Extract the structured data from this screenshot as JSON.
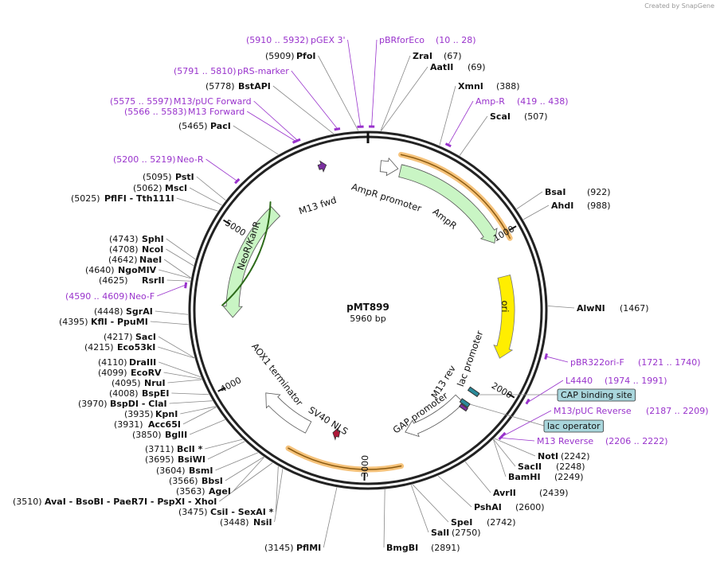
{
  "header": {
    "credit": "Created by SnapGene"
  },
  "map": {
    "name": "pMT899",
    "size": "5960 bp",
    "ticks": [
      1000,
      2000,
      3000,
      4000,
      5000
    ]
  },
  "enzymes": [
    {
      "name": "ZraI",
      "position": "(67)"
    },
    {
      "name": "AatII",
      "position": "(69)"
    },
    {
      "name": "XmnI",
      "position": "(388)"
    },
    {
      "name": "ScaI",
      "position": "(507)"
    },
    {
      "name": "BsaI",
      "position": "(922)"
    },
    {
      "name": "AhdI",
      "position": "(988)"
    },
    {
      "name": "AlwNI",
      "position": "(1467)"
    },
    {
      "name": "NotI",
      "position": "(2242)"
    },
    {
      "name": "SacII",
      "position": "(2248)"
    },
    {
      "name": "BamHI",
      "position": "(2249)"
    },
    {
      "name": "AvrII",
      "position": "(2439)"
    },
    {
      "name": "PshAI",
      "position": "(2600)"
    },
    {
      "name": "SpeI",
      "position": "(2742)"
    },
    {
      "name": "SalI",
      "position": "(2750)"
    },
    {
      "name": "BmgBI",
      "position": "(2891)"
    },
    {
      "name": "PfoI",
      "position": "(5909)"
    },
    {
      "name": "BstAPI",
      "position": "(5778)"
    },
    {
      "name": "PacI",
      "position": "(5465)"
    },
    {
      "name": "PstI",
      "position": "(5095)"
    },
    {
      "name": "MscI",
      "position": "(5062)"
    },
    {
      "name": "PflFI - Tth111I",
      "position": "(5025)"
    },
    {
      "name": "SphI",
      "position": "(4743)"
    },
    {
      "name": "NcoI",
      "position": "(4708)"
    },
    {
      "name": "NaeI",
      "position": "(4642)"
    },
    {
      "name": "NgoMIV",
      "position": "(4640)"
    },
    {
      "name": "RsrII",
      "position": "(4625)"
    },
    {
      "name": "SgrAI",
      "position": "(4448)"
    },
    {
      "name": "KflI - PpuMI",
      "position": "(4395)"
    },
    {
      "name": "SacI",
      "position": "(4217)"
    },
    {
      "name": "Eco53kI",
      "position": "(4215)"
    },
    {
      "name": "DraIII",
      "position": "(4110)"
    },
    {
      "name": "EcoRV",
      "position": "(4099)"
    },
    {
      "name": "NruI",
      "position": "(4095)"
    },
    {
      "name": "BspEI",
      "position": "(4008)"
    },
    {
      "name": "BspDI - ClaI",
      "position": "(3970)"
    },
    {
      "name": "KpnI",
      "position": "(3935)"
    },
    {
      "name": "Acc65I",
      "position": "(3931)"
    },
    {
      "name": "BglII",
      "position": "(3850)"
    },
    {
      "name": "BclI *",
      "position": "(3711)"
    },
    {
      "name": "BsiWI",
      "position": "(3695)"
    },
    {
      "name": "BsmI",
      "position": "(3604)"
    },
    {
      "name": "BbsI",
      "position": "(3566)"
    },
    {
      "name": "AgeI",
      "position": "(3563)"
    },
    {
      "name": "AvaI - BsoBI - PaeR7I - PspXI - XhoI",
      "position": "(3510)"
    },
    {
      "name": "CsiI - SexAI *",
      "position": "(3475)"
    },
    {
      "name": "NsiI",
      "position": "(3448)"
    },
    {
      "name": "PflMI",
      "position": "(3145)"
    }
  ],
  "primers": [
    {
      "name": "pGEX 3'",
      "range": "(5910 .. 5932)"
    },
    {
      "name": "pRS-marker",
      "range": "(5791 .. 5810)"
    },
    {
      "name": "M13/pUC Forward",
      "range": "(5575 .. 5597)"
    },
    {
      "name": "M13 Forward",
      "range": "(5566 .. 5583)"
    },
    {
      "name": "Neo-R",
      "range": "(5200 .. 5219)"
    },
    {
      "name": "Neo-F",
      "range": "(4590 .. 4609)"
    },
    {
      "name": "pBRforEco",
      "range": "(10 .. 28)"
    },
    {
      "name": "Amp-R",
      "range": "(419 .. 438)"
    },
    {
      "name": "pBR322ori-F",
      "range": "(1721 .. 1740)"
    },
    {
      "name": "L4440",
      "range": "(1974 .. 1991)"
    },
    {
      "name": "M13/pUC Reverse",
      "range": "(2187 .. 2209)"
    },
    {
      "name": "M13 Reverse",
      "range": "(2206 .. 2222)"
    }
  ],
  "features": [
    "M13 fwd",
    "AmpR promoter",
    "AmpR",
    "ori",
    "lac promoter",
    "M13 rev",
    "GAP promoter",
    "SV40 NLS",
    "AOX1 terminator",
    "NeoR/KanR"
  ],
  "sites": [
    "CAP binding site",
    "lac operator"
  ]
}
